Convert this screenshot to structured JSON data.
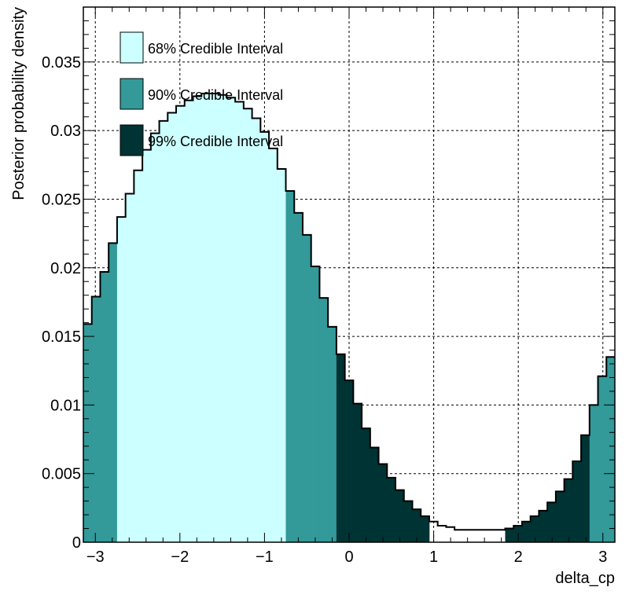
{
  "chart_data": {
    "type": "bar",
    "title": "",
    "xlabel": "delta_cp",
    "ylabel": "Posterior probability density",
    "xlim": [
      -3.14159,
      3.14159
    ],
    "ylim": [
      0,
      0.039
    ],
    "grid": true,
    "x_ticks": [
      -3,
      -2,
      -1,
      0,
      1,
      2,
      3
    ],
    "x_tick_labels": [
      "−3",
      "−2",
      "−1",
      "0",
      "1",
      "2",
      "3"
    ],
    "y_ticks": [
      0,
      0.005,
      0.01,
      0.015,
      0.02,
      0.025,
      0.03,
      0.035
    ],
    "y_tick_labels": [
      "0",
      "0.005",
      "0.01",
      "0.015",
      "0.02",
      "0.025",
      "0.03",
      "0.035"
    ],
    "bin_count": 63,
    "densities": [
      0.0159,
      0.0179,
      0.0197,
      0.0218,
      0.0237,
      0.0254,
      0.0271,
      0.0286,
      0.0298,
      0.0307,
      0.0313,
      0.0318,
      0.0322,
      0.0325,
      0.0327,
      0.0327,
      0.0326,
      0.0324,
      0.0321,
      0.0316,
      0.0309,
      0.0299,
      0.0287,
      0.0272,
      0.0256,
      0.024,
      0.0224,
      0.0201,
      0.0178,
      0.0157,
      0.0137,
      0.0118,
      0.0101,
      0.0083,
      0.0069,
      0.0057,
      0.0047,
      0.0038,
      0.003,
      0.0024,
      0.0019,
      0.0015,
      0.0012,
      0.0011,
      0.0009,
      0.0009,
      0.0009,
      0.0009,
      0.0009,
      0.0009,
      0.001,
      0.0012,
      0.0015,
      0.0019,
      0.0023,
      0.0029,
      0.0037,
      0.0046,
      0.0059,
      0.0078,
      0.01,
      0.0121,
      0.0135
    ],
    "intervals": [
      {
        "name": "68% Credible Interval",
        "color": "#ccffff",
        "ranges": [
          [
            -2.79,
            -0.73
          ]
        ]
      },
      {
        "name": "90% Credible Interval",
        "color": "#339999",
        "ranges": [
          [
            -3.14159,
            -2.79
          ],
          [
            -0.73,
            -0.1
          ],
          [
            2.88,
            3.14159
          ]
        ]
      },
      {
        "name": "99% Credible Interval",
        "color": "#003333",
        "ranges": [
          [
            -0.1,
            0.98
          ],
          [
            1.88,
            2.88
          ]
        ]
      }
    ],
    "outline_color": "#000000"
  }
}
